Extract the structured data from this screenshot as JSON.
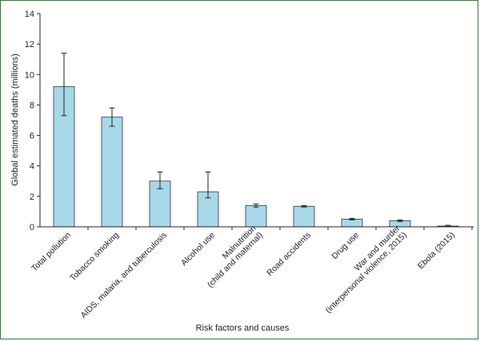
{
  "chart_data": {
    "type": "bar",
    "xlabel": "Risk factors and causes",
    "ylabel": "Global estimated deaths (millions)",
    "ylim": [
      0,
      14
    ],
    "yticks": [
      0,
      2,
      4,
      6,
      8,
      10,
      12,
      14
    ],
    "bar_color": "#a8d8e8",
    "border_color": "#2f7d32",
    "categories": [
      [
        "Total pollution"
      ],
      [
        "Tobacco smoking"
      ],
      [
        "AIDS, malaria, and tuberculosis"
      ],
      [
        "Alcohol use"
      ],
      [
        "Malnutrition",
        "(child and maternal)"
      ],
      [
        "Road accidents"
      ],
      [
        "Drug use"
      ],
      [
        "War and murder",
        "(interpersonal violence, 2015)"
      ],
      [
        "Ebola (2015)"
      ]
    ],
    "values": [
      9.2,
      7.2,
      3.0,
      2.3,
      1.4,
      1.35,
      0.5,
      0.4,
      0.05
    ],
    "error_low": [
      7.3,
      6.6,
      2.5,
      1.9,
      1.3,
      1.3,
      0.45,
      0.35,
      0.0
    ],
    "error_high": [
      11.4,
      7.8,
      3.6,
      3.6,
      1.5,
      1.4,
      0.55,
      0.45,
      0.1
    ]
  }
}
